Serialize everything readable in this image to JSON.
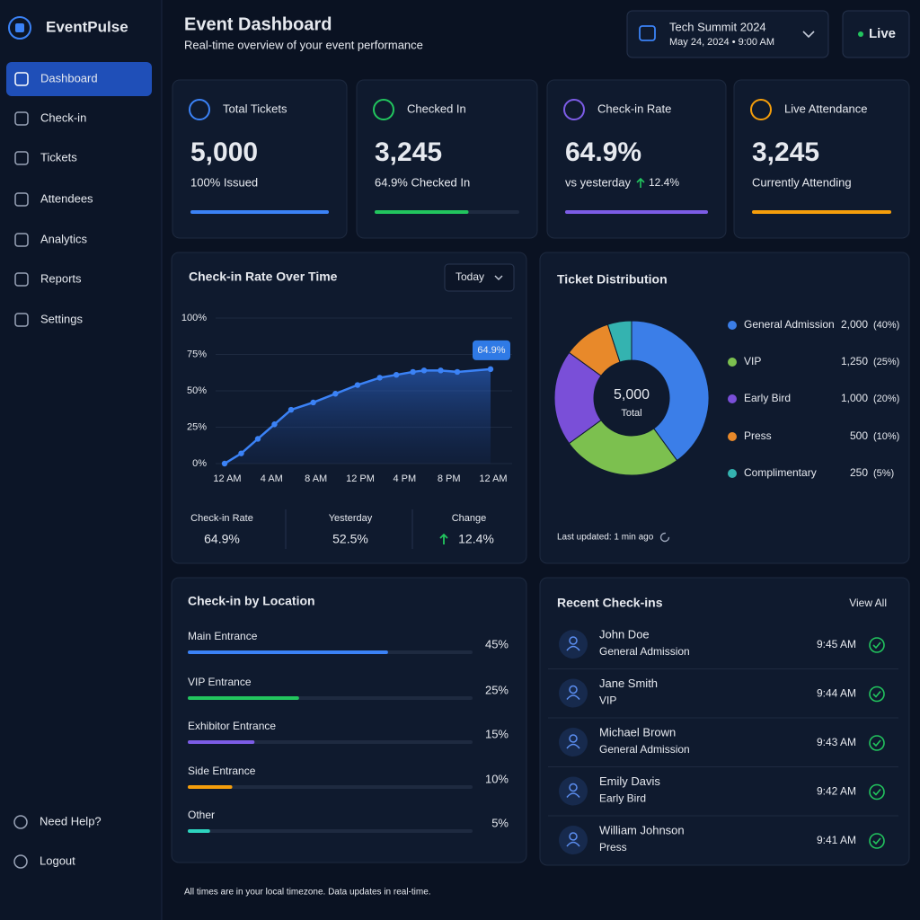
{
  "sidebar": {
    "brand": "EventPulse",
    "nav": [
      "Dashboard",
      "Check-in",
      "Tickets",
      "Attendees",
      "Analytics",
      "Reports",
      "Settings"
    ],
    "footer": [
      "Need Help?",
      "Logout"
    ]
  },
  "header": {
    "title": "Event Dashboard",
    "subtitle": "Real-time overview of your event performance",
    "event_name": "Tech Summit 2024",
    "event_date": "May 24, 2024  •  9:00 AM",
    "status": "Live"
  },
  "stats": {
    "lim": [
      0,
      100
    ],
    "cards": [
      {
        "label": "Total Tickets",
        "value": "5,000",
        "sub": "100% Issued",
        "progress": 100,
        "color": "#3b82f6"
      },
      {
        "label": "Checked In",
        "value": "3,245",
        "sub": "64.9% Checked In",
        "progress": 64.9,
        "color": "#22c55e"
      },
      {
        "label": "Check-in Rate",
        "value": "64.9%",
        "sub": "vs yesterday",
        "delta": "12.4%",
        "progress": 100,
        "color": "#7c5ce6"
      },
      {
        "label": "Live Attendance",
        "value": "3,245",
        "sub": "Currently Attending",
        "progress": 100,
        "color": "#f59e0b"
      }
    ]
  },
  "chart_data": [
    {
      "type": "line",
      "title": "Check-in Rate Over Time",
      "filter": "Today",
      "x": [
        0,
        1.5,
        3,
        4.5,
        6,
        8,
        10,
        12,
        14,
        15.5,
        17,
        18,
        19.5,
        21,
        24
      ],
      "series": [
        {
          "name": "Check-in Rate",
          "color": "#3b82f6",
          "values": [
            0,
            7,
            17,
            27,
            37,
            42,
            48,
            54,
            59,
            61,
            63,
            64,
            64,
            63,
            64.9
          ]
        }
      ],
      "annotation": "64.9%",
      "xlim": [
        0,
        24
      ],
      "xticks": [
        {
          "value": 0,
          "label": "12 AM"
        },
        {
          "value": 4,
          "label": "4 AM"
        },
        {
          "value": 8,
          "label": "8 AM"
        },
        {
          "value": 12,
          "label": "12 PM"
        },
        {
          "value": 16,
          "label": "4 PM"
        },
        {
          "value": 20,
          "label": "8 PM"
        },
        {
          "value": 24,
          "label": "12 AM"
        }
      ],
      "ylim": [
        0,
        100
      ],
      "yticks": [
        {
          "value": 0,
          "label": "0%"
        },
        {
          "value": 25,
          "label": "25%"
        },
        {
          "value": 50,
          "label": "50%"
        },
        {
          "value": 75,
          "label": "75%"
        },
        {
          "value": 100,
          "label": "100%"
        }
      ],
      "grid": true,
      "summary": [
        {
          "label": "Check-in Rate",
          "value": "64.9%"
        },
        {
          "label": "Yesterday",
          "value": "52.5%"
        },
        {
          "label": "Change",
          "value": "12.4%"
        }
      ]
    },
    {
      "type": "pie",
      "title": "Ticket Distribution",
      "center_value": "5,000",
      "center_label": "Total",
      "categories": [
        "General Admission",
        "VIP",
        "Early Bird",
        "Press",
        "Complimentary"
      ],
      "values": [
        2000,
        1250,
        1000,
        500,
        250
      ],
      "value_labels": [
        "2,000",
        "1,250",
        "1,000",
        "500",
        "250"
      ],
      "share_labels": [
        "(40%)",
        "(25%)",
        "(20%)",
        "(10%)",
        "(5%)"
      ],
      "colors": [
        "#3b7ee8",
        "#7cc04f",
        "#7a4fd8",
        "#e8892a",
        "#34b3b0"
      ],
      "footnote": "Last updated: 1 min ago"
    },
    {
      "type": "hbar",
      "title": "Check-in by Location",
      "categories": [
        "Main Entrance",
        "VIP Entrance",
        "Exhibitor Entrance",
        "Side Entrance",
        "Other"
      ],
      "values": [
        45,
        25,
        15,
        10,
        5
      ],
      "value_labels": [
        "45%",
        "25%",
        "15%",
        "10%",
        "5%"
      ],
      "colors": [
        "#3b82f6",
        "#22c55e",
        "#7c5ce6",
        "#f59e0b",
        "#2dd4bf"
      ],
      "xlim": [
        0,
        64
      ]
    }
  ],
  "recent": {
    "title": "Recent Check-ins",
    "link": "View All",
    "rows": [
      {
        "name": "John Doe",
        "type": "General Admission",
        "time": "9:45 AM"
      },
      {
        "name": "Jane Smith",
        "type": "VIP",
        "time": "9:44 AM"
      },
      {
        "name": "Michael Brown",
        "type": "General Admission",
        "time": "9:43 AM"
      },
      {
        "name": "Emily Davis",
        "type": "Early Bird",
        "time": "9:42 AM"
      },
      {
        "name": "William Johnson",
        "type": "Press",
        "time": "9:41 AM"
      }
    ]
  },
  "footer": "All times are in your local timezone. Data updates in real-time."
}
